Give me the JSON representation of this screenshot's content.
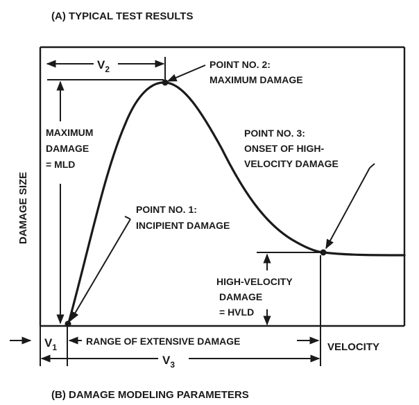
{
  "figure": {
    "title_a": "(A)  TYPICAL TEST RESULTS",
    "title_b": "(B)  DAMAGE MODELING PARAMETERS",
    "y_axis_label": "DAMAGE SIZE",
    "x_axis_label": "VELOCITY"
  },
  "points": [
    {
      "line1": "POINT NO. 1:",
      "line2": "INCIPIENT DAMAGE"
    },
    {
      "line1": "POINT NO. 2:",
      "line2": "MAXIMUM DAMAGE"
    },
    {
      "line1": "POINT NO. 3:",
      "line2": "ONSET OF HIGH-",
      "line3": "VELOCITY DAMAGE"
    }
  ],
  "parameters": {
    "v1": "V",
    "v1_sub": "1",
    "v2": "V",
    "v2_sub": "2",
    "v3": "V",
    "v3_sub": "3",
    "range": "RANGE OF EXTENSIVE DAMAGE",
    "mld": [
      "MAXIMUM",
      "DAMAGE",
      "= MLD"
    ],
    "hvld": [
      "HIGH-VELOCITY",
      "DAMAGE",
      "= HVLD"
    ]
  }
}
